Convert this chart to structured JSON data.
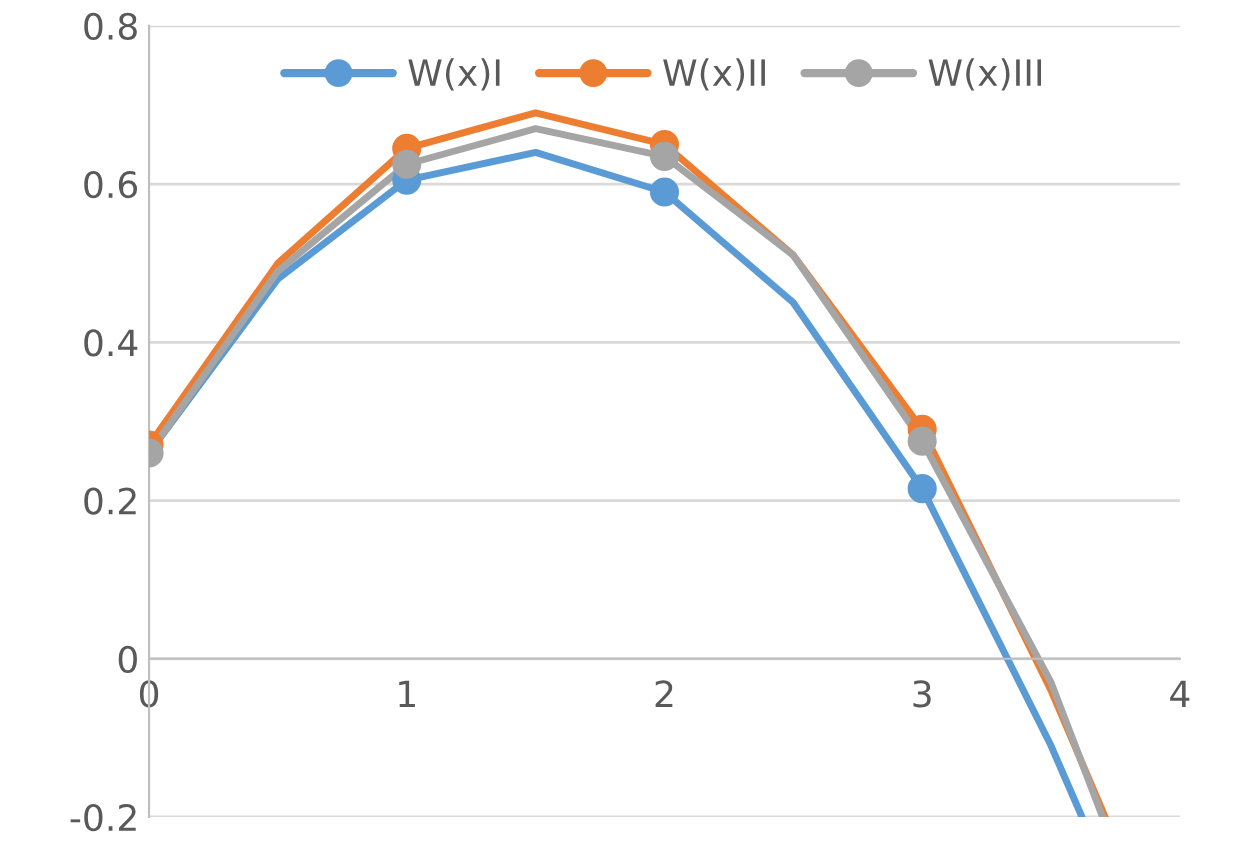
{
  "chart_data": {
    "type": "line",
    "xlim": [
      0,
      4
    ],
    "xticks": [
      0,
      1,
      2,
      3,
      4
    ],
    "ylim": [
      -0.2,
      0.8
    ],
    "yticks": [
      -0.2,
      0,
      0.2,
      0.4,
      0.6,
      0.8
    ],
    "grid": "y",
    "legend": "top",
    "line_style": "solid",
    "series": [
      {
        "color": "#5b9bd5",
        "x": [
          0,
          0.5,
          1,
          1.5,
          2,
          2.5,
          3,
          3.5,
          3.62
        ],
        "values": [
          0.26,
          0.48,
          0.605,
          0.64,
          0.59,
          0.45,
          0.215,
          -0.11,
          -0.2
        ]
      },
      {
        "color": "#ed7d31",
        "x": [
          0,
          0.5,
          1,
          1.5,
          2,
          2.5,
          3,
          3.5,
          3.71
        ],
        "values": [
          0.27,
          0.5,
          0.645,
          0.69,
          0.65,
          0.51,
          0.29,
          -0.04,
          -0.2
        ]
      },
      {
        "color": "#a5a5a5",
        "x": [
          0,
          0.5,
          1,
          1.5,
          2,
          2.5,
          3,
          3.5,
          3.7
        ],
        "values": [
          0.26,
          0.49,
          0.625,
          0.67,
          0.635,
          0.51,
          0.275,
          -0.03,
          -0.2
        ]
      },
      {
        "type": "scatter",
        "name": "W(x)I",
        "color": "#5b9bd5",
        "marker": "circle",
        "x": [
          1,
          2,
          3
        ],
        "values": [
          0.605,
          0.59,
          0.215
        ]
      },
      {
        "type": "scatter",
        "name": "W(x)II",
        "color": "#ed7d31",
        "marker": "circle",
        "x": [
          0,
          1,
          2,
          3
        ],
        "values": [
          0.27,
          0.645,
          0.65,
          0.29
        ]
      },
      {
        "type": "scatter",
        "name": "W(x)III",
        "color": "#a5a5a5",
        "marker": "circle",
        "x": [
          0,
          1,
          2,
          3
        ],
        "values": [
          0.26,
          0.625,
          0.635,
          0.275
        ]
      }
    ]
  }
}
